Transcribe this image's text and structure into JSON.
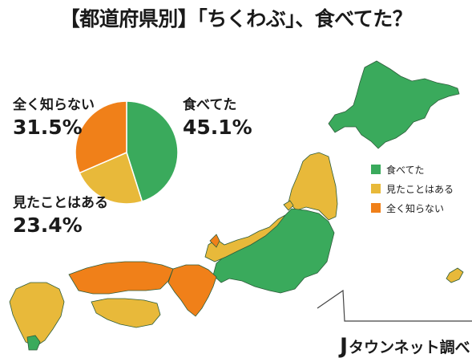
{
  "title": "【都道府県別】「ちくわぶ」、食べてた？",
  "colors": {
    "ate": "#3aaa5c",
    "seen": "#e8b93a",
    "unknown": "#f08019",
    "border": "#2d5c3a"
  },
  "chart_data": {
    "type": "pie",
    "categories": [
      "食べてた",
      "見たことはある",
      "全く知らない"
    ],
    "values": [
      45.1,
      23.4,
      31.5
    ],
    "labels": [
      "45.1%",
      "23.4%",
      "31.5%"
    ],
    "legend": {
      "placement": "right",
      "entries": [
        "食べてた",
        "見たことはある",
        "全く知らない"
      ]
    }
  },
  "labels": {
    "ate": {
      "name": "食べてた",
      "pct": "45.1%"
    },
    "seen": {
      "name": "見たことはある",
      "pct": "23.4%"
    },
    "unknown": {
      "name": "全く知らない",
      "pct": "31.5%"
    }
  },
  "map_legend": [
    {
      "label": "食べてた",
      "color": "#3aaa5c"
    },
    {
      "label": "見たことはある",
      "color": "#e8b93a"
    },
    {
      "label": "全く知らない",
      "color": "#f08019"
    }
  ],
  "credit": {
    "mark": "J",
    "text": "タウンネット調べ"
  }
}
